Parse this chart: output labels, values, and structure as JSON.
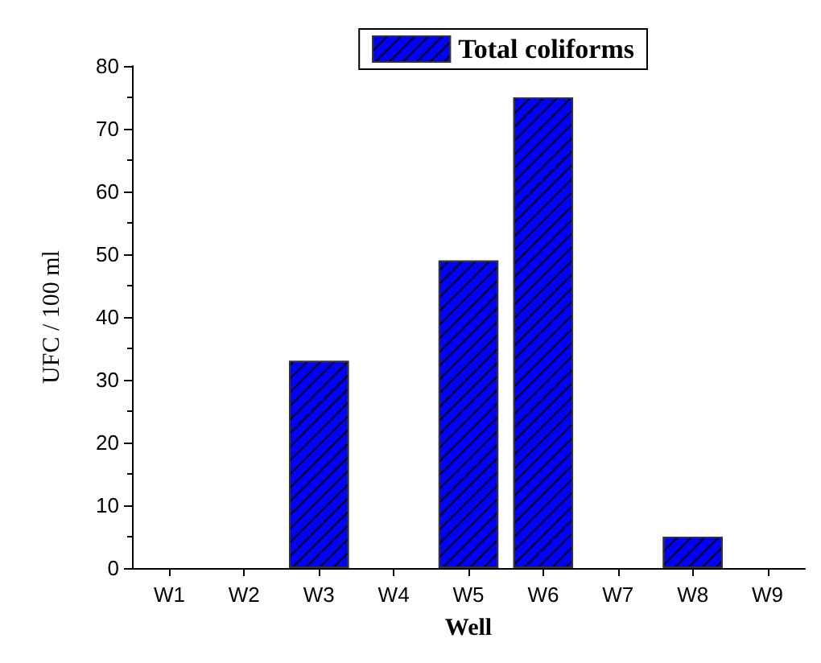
{
  "chart_data": {
    "type": "bar",
    "xlabel": "Well",
    "ylabel": "UFC / 100 ml",
    "categories": [
      "W1",
      "W2",
      "W3",
      "W4",
      "W5",
      "W6",
      "W7",
      "W8",
      "W9"
    ],
    "series": [
      {
        "name": "Total coliforms",
        "color": "#0000ff",
        "values": [
          0,
          0,
          33,
          0,
          49,
          75,
          0,
          5,
          0
        ]
      }
    ],
    "ylim": [
      0,
      80
    ],
    "yticks": [
      0,
      10,
      20,
      30,
      40,
      50,
      60,
      70,
      80
    ],
    "grid": false,
    "legend": "top right"
  }
}
